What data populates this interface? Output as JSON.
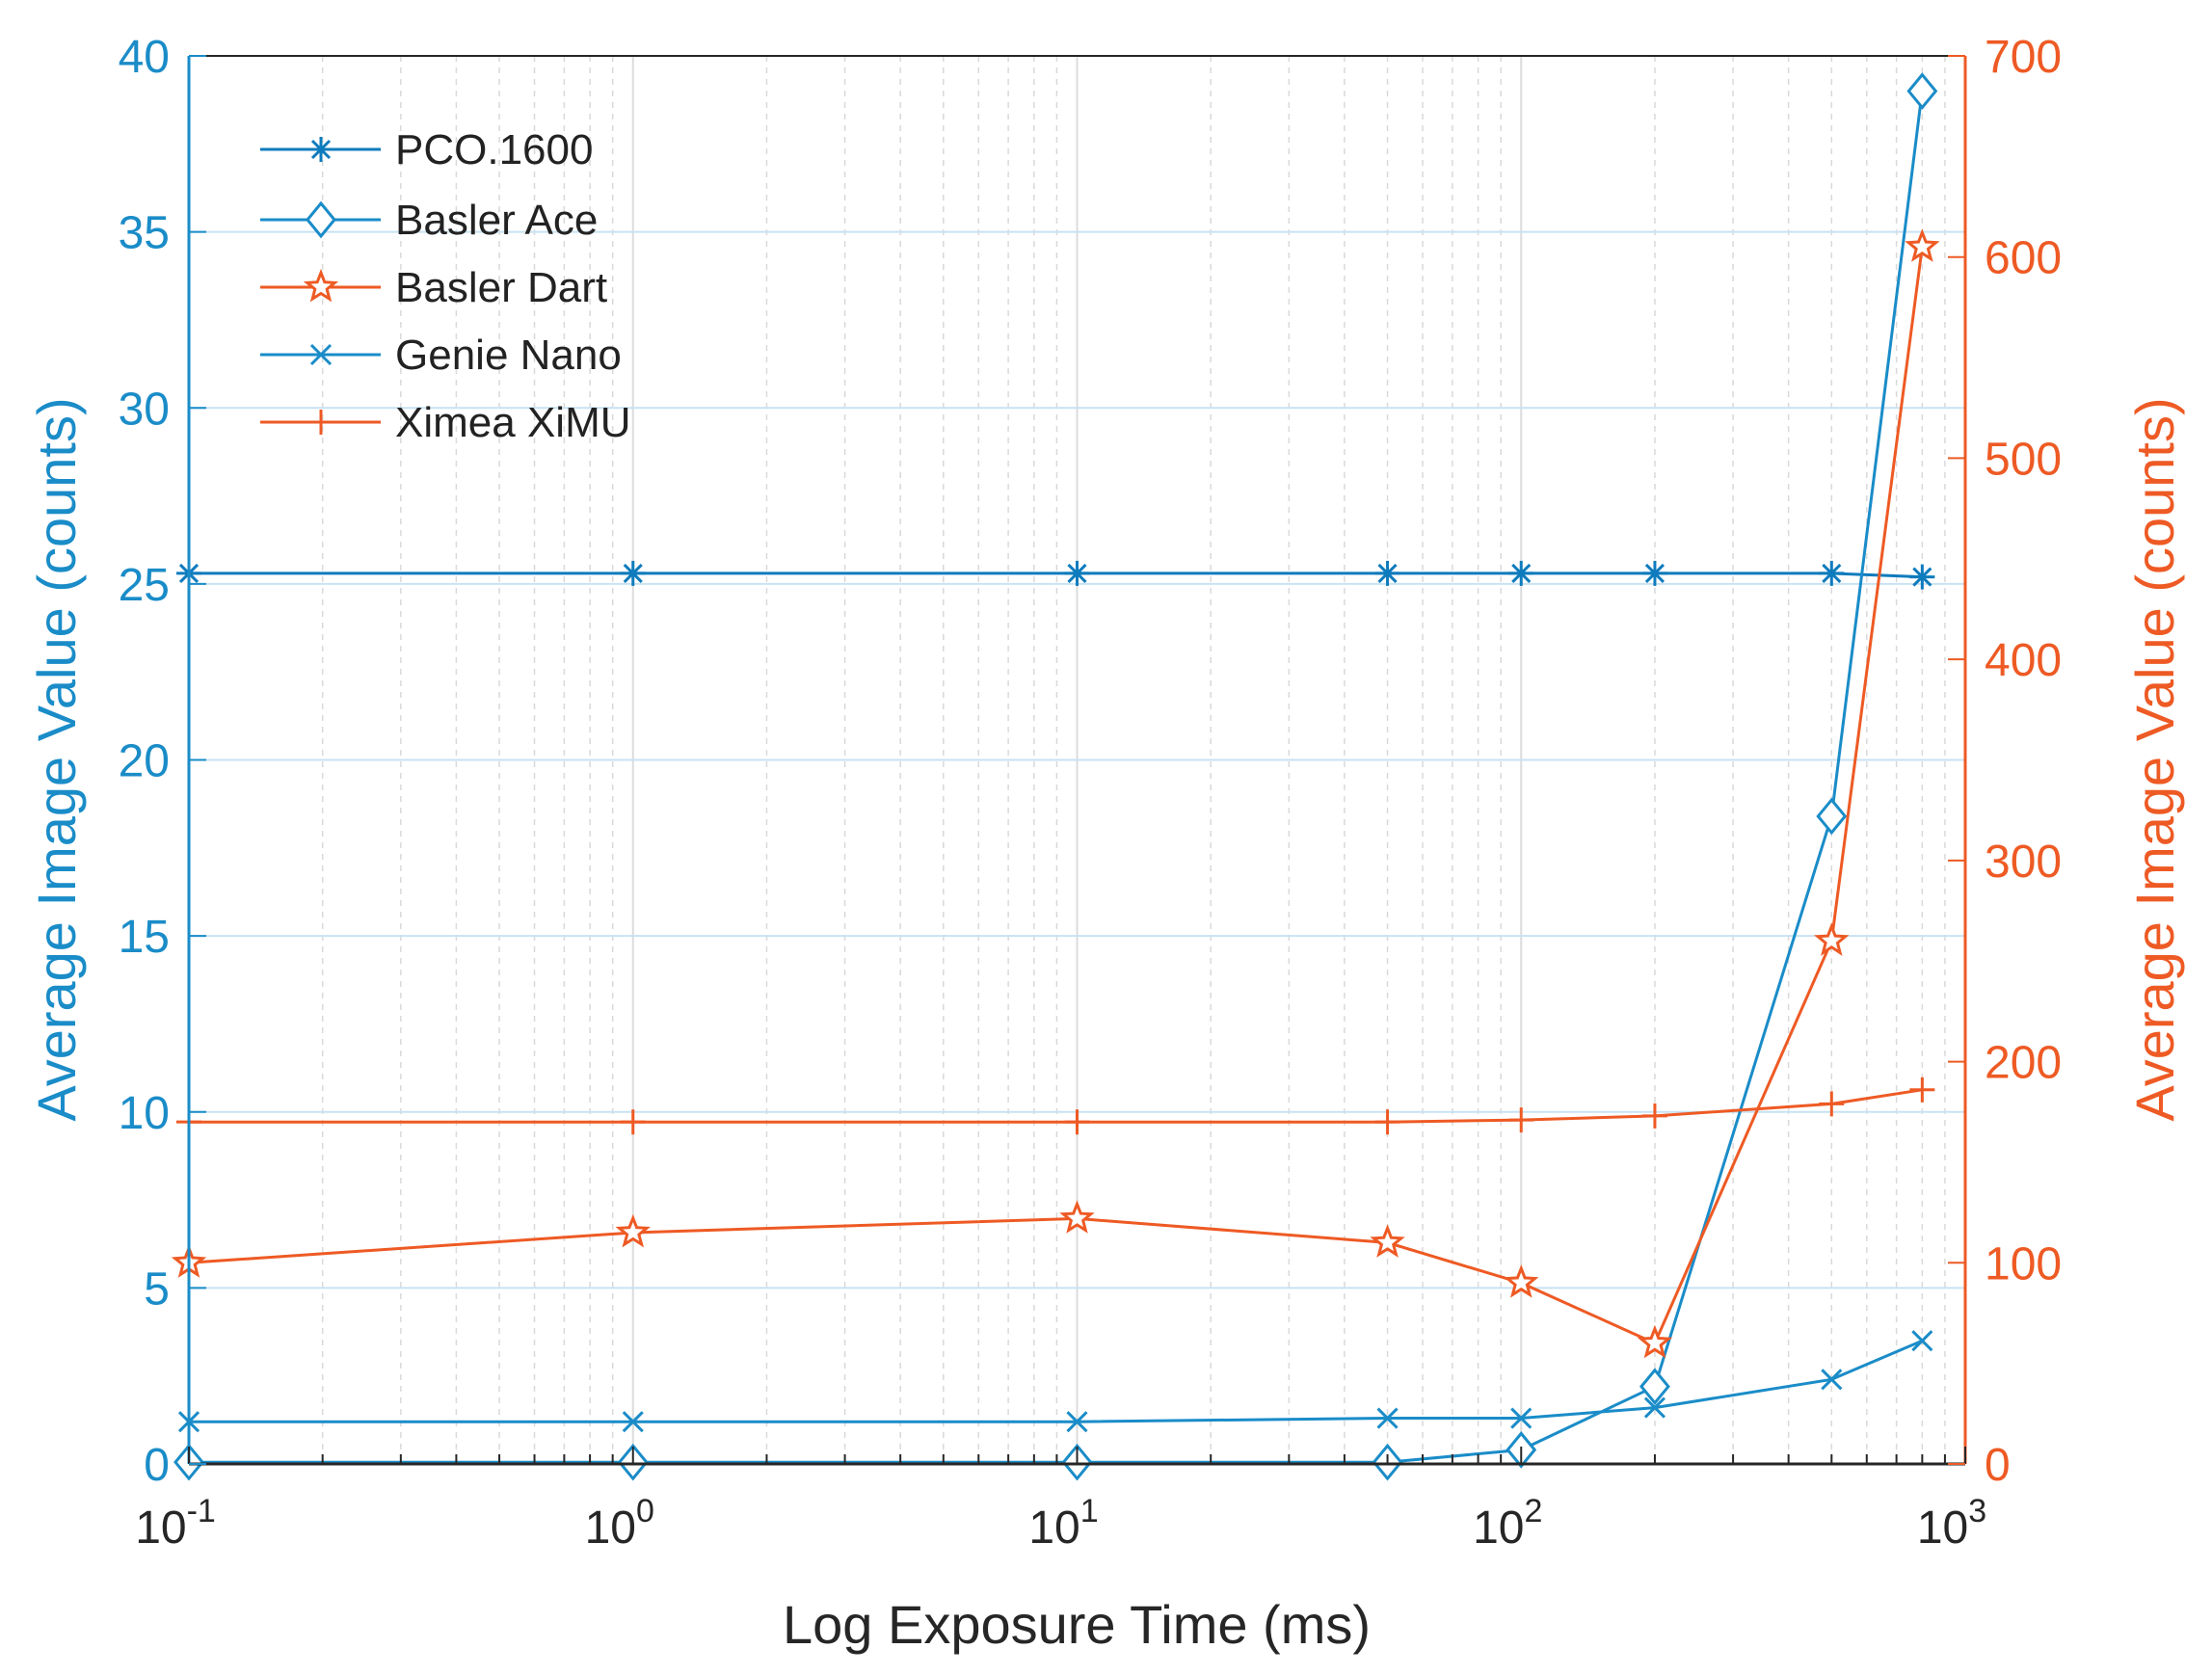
{
  "chart_data": {
    "type": "line",
    "title": "",
    "xlabel": "Log Exposure Time (ms)",
    "xscale": "log",
    "xlim": [
      0.1,
      1000
    ],
    "x_tick_values": [
      0.1,
      1,
      10,
      100,
      1000
    ],
    "x_tick_bases": [
      "10",
      "10",
      "10",
      "10",
      "10"
    ],
    "x_tick_exponents": [
      "-1",
      "0",
      "1",
      "2",
      "3"
    ],
    "ylabel_left": "Average Image Value (counts)",
    "ylim_left": [
      0,
      40
    ],
    "yticks_left": [
      "0",
      "5",
      "10",
      "15",
      "20",
      "25",
      "30",
      "35",
      "40"
    ],
    "ylabel_right": "Average Image Value (counts)",
    "ylim_right": [
      0,
      700
    ],
    "yticks_right": [
      "0",
      "100",
      "200",
      "300",
      "400",
      "500",
      "600",
      "700"
    ],
    "grid": true,
    "legend_position": "top-left",
    "colors": {
      "left_axis": "#1a8cc8",
      "right_axis": "#ee5a24"
    },
    "series": [
      {
        "name": "PCO.1600",
        "axis": "left",
        "marker": "asterisk",
        "color": "#0d7bbd",
        "x": [
          0.1,
          1,
          10,
          50,
          100,
          200,
          500,
          800
        ],
        "y": [
          25.3,
          25.3,
          25.3,
          25.3,
          25.3,
          25.3,
          25.3,
          25.2
        ]
      },
      {
        "name": "Basler Ace",
        "axis": "left",
        "marker": "diamond",
        "color": "#1a8cc8",
        "x": [
          0.1,
          1,
          10,
          50,
          100,
          200,
          500,
          800
        ],
        "y": [
          0.05,
          0.05,
          0.05,
          0.05,
          0.4,
          2.2,
          18.4,
          39.0
        ]
      },
      {
        "name": "Basler Dart",
        "axis": "right",
        "marker": "star",
        "color": "#ee5a24",
        "x": [
          0.1,
          1,
          10,
          50,
          100,
          200,
          500,
          800
        ],
        "y": [
          100,
          115,
          122,
          110,
          90,
          60,
          260,
          605
        ]
      },
      {
        "name": "Genie Nano",
        "axis": "left",
        "marker": "x",
        "color": "#1a8cc8",
        "x": [
          0.1,
          1,
          10,
          50,
          100,
          200,
          500,
          800
        ],
        "y": [
          1.2,
          1.2,
          1.2,
          1.3,
          1.3,
          1.6,
          2.4,
          3.5
        ]
      },
      {
        "name": "Ximea XiMU",
        "axis": "right",
        "marker": "plus",
        "color": "#ee5a24",
        "x": [
          0.1,
          1,
          10,
          50,
          100,
          200,
          500,
          800
        ],
        "y": [
          170,
          170,
          170,
          170,
          171,
          173,
          179,
          186
        ]
      }
    ]
  }
}
